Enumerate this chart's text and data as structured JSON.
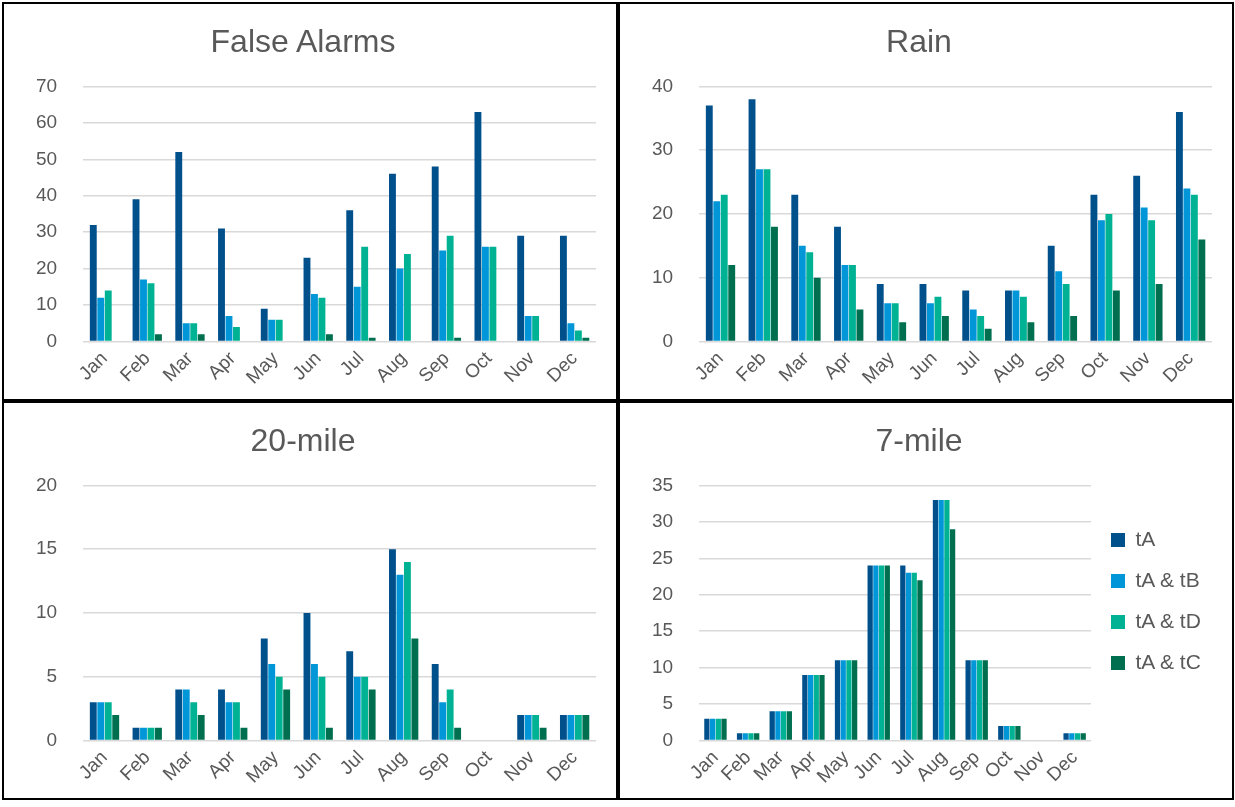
{
  "chart_data": [
    {
      "type": "bar",
      "title": "False Alarms",
      "categories": [
        "Jan",
        "Feb",
        "Mar",
        "Apr",
        "May",
        "Jun",
        "Jul",
        "Aug",
        "Sep",
        "Oct",
        "Nov",
        "Dec"
      ],
      "ylim": [
        0,
        70
      ],
      "yticks": [
        0,
        10,
        20,
        30,
        40,
        50,
        60,
        70
      ],
      "grid": "y",
      "legend": false,
      "series": [
        {
          "color": "#00508c",
          "values": [
            32,
            39,
            52,
            31,
            9,
            23,
            36,
            46,
            48,
            63,
            29,
            29
          ]
        },
        {
          "color": "#0096d8",
          "values": [
            12,
            17,
            5,
            7,
            6,
            13,
            15,
            20,
            25,
            26,
            7,
            5
          ]
        },
        {
          "color": "#00b294",
          "values": [
            14,
            16,
            5,
            4,
            6,
            12,
            26,
            24,
            29,
            26,
            7,
            3
          ]
        },
        {
          "color": "#006f4f",
          "values": [
            0,
            2,
            2,
            0,
            0,
            2,
            1,
            0,
            1,
            0,
            0,
            1
          ]
        }
      ]
    },
    {
      "type": "bar",
      "title": "Rain",
      "categories": [
        "Jan",
        "Feb",
        "Mar",
        "Apr",
        "May",
        "Jun",
        "Jul",
        "Aug",
        "Sep",
        "Oct",
        "Nov",
        "Dec"
      ],
      "ylim": [
        0,
        40
      ],
      "yticks": [
        0,
        10,
        20,
        30,
        40
      ],
      "grid": "y",
      "legend": false,
      "series": [
        {
          "color": "#00508c",
          "values": [
            37,
            38,
            23,
            18,
            9,
            9,
            8,
            8,
            15,
            23,
            26,
            36
          ]
        },
        {
          "color": "#0096d8",
          "values": [
            22,
            27,
            15,
            12,
            6,
            6,
            5,
            8,
            11,
            19,
            21,
            24
          ]
        },
        {
          "color": "#00b294",
          "values": [
            23,
            27,
            14,
            12,
            6,
            7,
            4,
            7,
            9,
            20,
            19,
            23
          ]
        },
        {
          "color": "#006f4f",
          "values": [
            12,
            18,
            10,
            5,
            3,
            4,
            2,
            3,
            4,
            8,
            9,
            16
          ]
        }
      ]
    },
    {
      "type": "bar",
      "title": "20-mile",
      "categories": [
        "Jan",
        "Feb",
        "Mar",
        "Apr",
        "May",
        "Jun",
        "Jul",
        "Aug",
        "Sep",
        "Oct",
        "Nov",
        "Dec"
      ],
      "ylim": [
        0,
        20
      ],
      "yticks": [
        0,
        5,
        10,
        15,
        20
      ],
      "grid": "y",
      "legend": false,
      "series": [
        {
          "color": "#00508c",
          "values": [
            3,
            1,
            4,
            4,
            8,
            10,
            7,
            15,
            6,
            0,
            2,
            2
          ]
        },
        {
          "color": "#0096d8",
          "values": [
            3,
            1,
            4,
            3,
            6,
            6,
            5,
            13,
            3,
            0,
            2,
            2
          ]
        },
        {
          "color": "#00b294",
          "values": [
            3,
            1,
            3,
            3,
            5,
            5,
            5,
            14,
            4,
            0,
            2,
            2
          ]
        },
        {
          "color": "#006f4f",
          "values": [
            2,
            1,
            2,
            1,
            4,
            1,
            4,
            8,
            1,
            0,
            1,
            2
          ]
        }
      ]
    },
    {
      "type": "bar",
      "title": "7-mile",
      "categories": [
        "Jan",
        "Feb",
        "Mar",
        "Apr",
        "May",
        "Jun",
        "Jul",
        "Aug",
        "Sep",
        "Oct",
        "Nov",
        "Dec"
      ],
      "ylim": [
        0,
        35
      ],
      "yticks": [
        0,
        5,
        10,
        15,
        20,
        25,
        30,
        35
      ],
      "grid": "y",
      "legend": "right",
      "series": [
        {
          "name": "tA",
          "color": "#00508c",
          "values": [
            3,
            1,
            4,
            9,
            11,
            24,
            24,
            33,
            11,
            2,
            0,
            1
          ]
        },
        {
          "name": "tA & tB",
          "color": "#0096d8",
          "values": [
            3,
            1,
            4,
            9,
            11,
            24,
            23,
            33,
            11,
            2,
            0,
            1
          ]
        },
        {
          "name": "tA & tD",
          "color": "#00b294",
          "values": [
            3,
            1,
            4,
            9,
            11,
            24,
            23,
            33,
            11,
            2,
            0,
            1
          ]
        },
        {
          "name": "tA & tC",
          "color": "#006f4f",
          "values": [
            3,
            1,
            4,
            9,
            11,
            24,
            22,
            29,
            11,
            2,
            0,
            1
          ]
        }
      ]
    }
  ]
}
